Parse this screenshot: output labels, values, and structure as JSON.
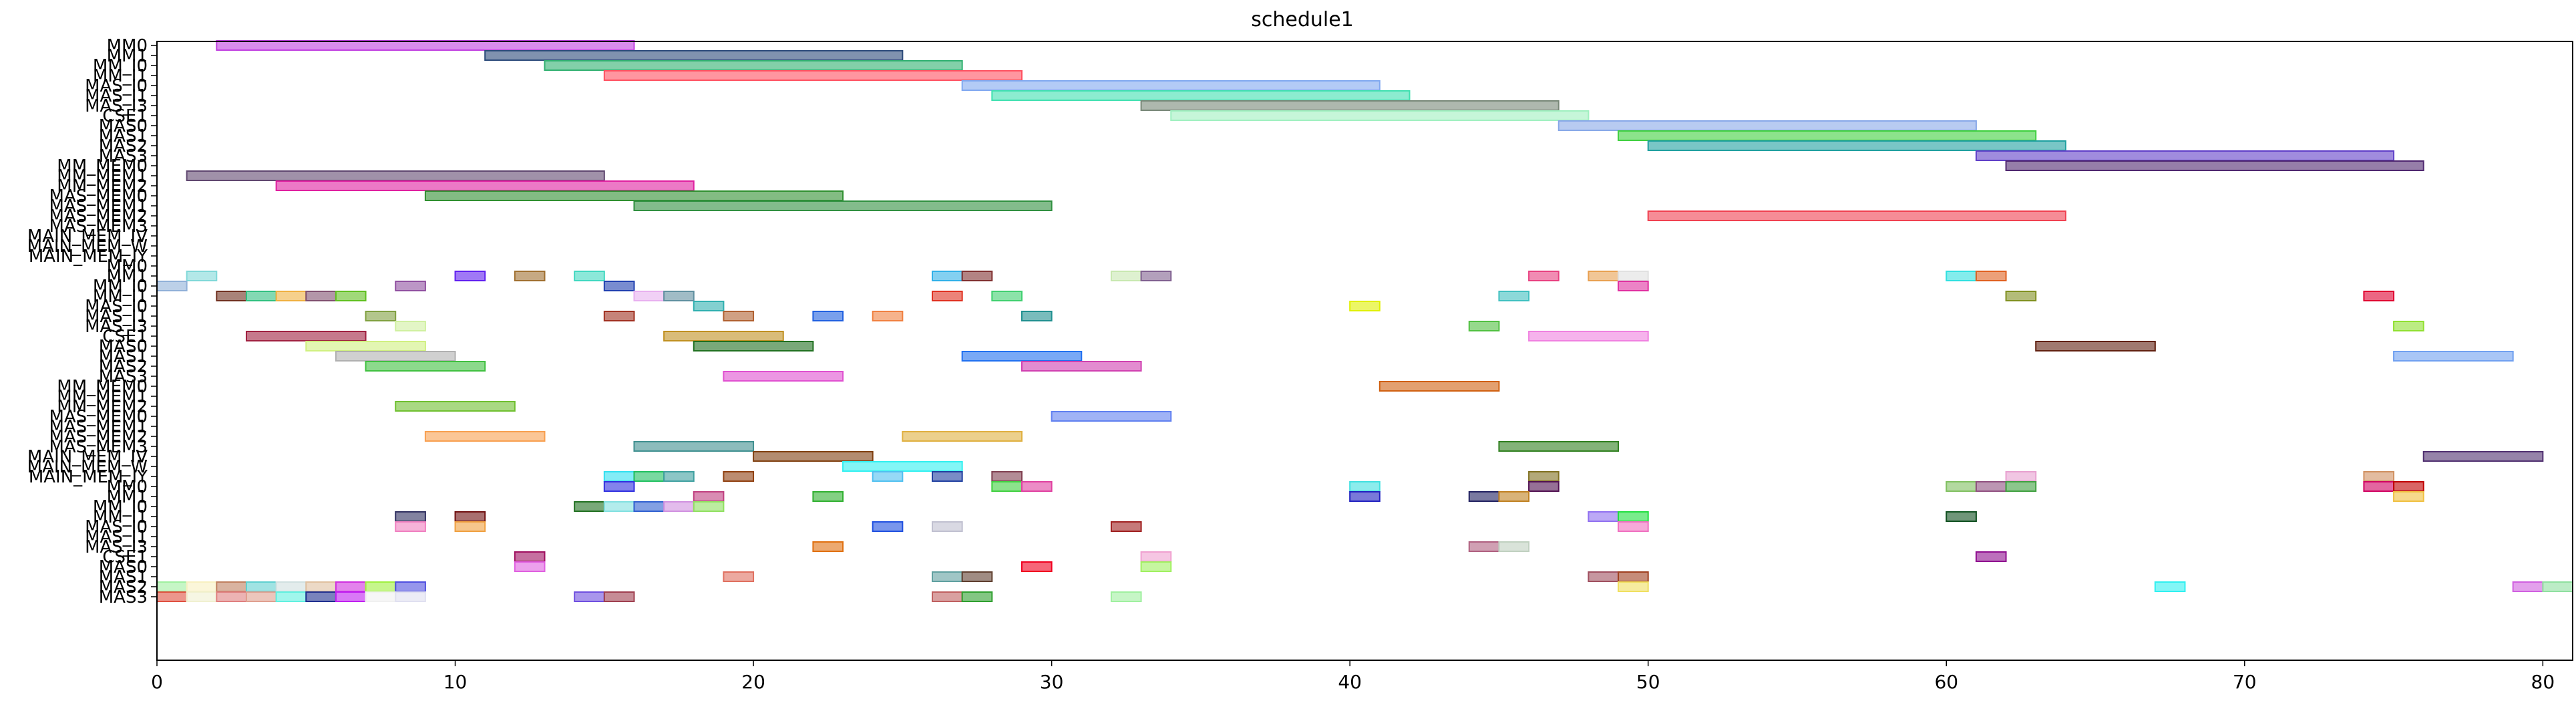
{
  "chart_data": {
    "type": "gantt",
    "title": "schedule1",
    "xlabel": "",
    "ylabel": "",
    "xlim": [
      0,
      81
    ],
    "xticks": [
      0,
      10,
      20,
      30,
      40,
      50,
      60,
      70,
      80
    ],
    "grid": false,
    "legend": "none",
    "ytick_labels_readable": [
      "MM0",
      "MM1",
      "MM_I0",
      "MM_I1",
      "MAS_I0",
      "MAS_I1",
      "MAS_I3",
      "CSE1",
      "MAS0",
      "MAS1",
      "MAS2",
      "MAS3",
      "MM_MEM0",
      "MM_MEM1",
      "MM_MEM2",
      "MAS_MEM0",
      "MAS_MEM1",
      "MAS_MEM2",
      "MAS_MEM3",
      "MAIN_MEM_IV",
      "MAIN_MEM_W",
      "MAIN_MEM_IY"
    ],
    "rows": [
      {
        "bars": [
          [
            2,
            16,
            "#c040e0"
          ]
        ]
      },
      {
        "bars": [
          [
            11,
            25,
            "#2c4a7a"
          ]
        ]
      },
      {
        "bars": [
          [
            13,
            27,
            "#30b070"
          ]
        ]
      },
      {
        "bars": [
          [
            15,
            29,
            "#ff5060"
          ]
        ]
      },
      {
        "bars": [
          [
            27,
            41,
            "#80a8f0"
          ]
        ]
      },
      {
        "bars": [
          [
            28,
            42,
            "#40e0b0"
          ]
        ]
      },
      {
        "bars": [
          [
            33,
            47,
            "#788878"
          ]
        ]
      },
      {
        "bars": [
          [
            34,
            48,
            "#a0f0c0"
          ]
        ]
      },
      {
        "bars": [
          [
            47,
            61,
            "#88a8e8"
          ]
        ]
      },
      {
        "bars": [
          [
            49,
            63,
            "#40d040"
          ]
        ]
      },
      {
        "bars": [
          [
            50,
            64,
            "#20a0a0"
          ]
        ]
      },
      {
        "bars": [
          [
            61,
            75,
            "#6040c8"
          ]
        ]
      },
      {
        "bars": [
          [
            62,
            76,
            "#502870"
          ]
        ]
      },
      {
        "bars": [
          [
            1,
            15,
            "#604870"
          ]
        ]
      },
      {
        "bars": [
          [
            4,
            18,
            "#e020a0"
          ]
        ]
      },
      {
        "bars": [
          [
            9,
            23,
            "#309030"
          ]
        ]
      },
      {
        "bars": [
          [
            16,
            30,
            "#309040"
          ]
        ]
      },
      {
        "bars": [
          [
            50,
            64,
            "#f04050"
          ]
        ]
      },
      {
        "bars": []
      },
      {
        "bars": []
      },
      {
        "bars": []
      },
      {
        "bars": []
      },
      {
        "bars": []
      },
      {
        "bars": [
          [
            1,
            2,
            "#80d8d8"
          ],
          [
            10,
            11,
            "#6020f0"
          ],
          [
            12,
            13,
            "#a07030"
          ],
          [
            14,
            15,
            "#40d8c0"
          ],
          [
            26,
            27,
            "#30b0e8"
          ],
          [
            27,
            28,
            "#803030"
          ],
          [
            32,
            33,
            "#c8e8b0"
          ],
          [
            33,
            34,
            "#806090"
          ],
          [
            46,
            47,
            "#e84080"
          ],
          [
            48,
            49,
            "#e8a050"
          ],
          [
            49,
            50,
            "#e0e0e0"
          ],
          [
            60,
            61,
            "#30e0e0"
          ],
          [
            61,
            62,
            "#e06020"
          ]
        ]
      },
      {
        "bars": [
          [
            0,
            1,
            "#90b0d8"
          ],
          [
            8,
            9,
            "#9050a0"
          ],
          [
            15,
            16,
            "#2040b0"
          ],
          [
            49,
            50,
            "#e030a0"
          ]
        ]
      },
      {
        "bars": [
          [
            2,
            3,
            "#703020"
          ],
          [
            3,
            4,
            "#30c080"
          ],
          [
            4,
            5,
            "#f0b040"
          ],
          [
            5,
            6,
            "#805070"
          ],
          [
            6,
            7,
            "#60c020"
          ],
          [
            16,
            17,
            "#e8b0f0"
          ],
          [
            17,
            18,
            "#6090a0"
          ],
          [
            26,
            27,
            "#e03020"
          ],
          [
            28,
            29,
            "#40d070"
          ],
          [
            45,
            46,
            "#40c0c0"
          ],
          [
            62,
            63,
            "#809020"
          ],
          [
            74,
            75,
            "#e00030"
          ]
        ]
      },
      {
        "bars": [
          [
            18,
            19,
            "#30b0b0"
          ],
          [
            40,
            41,
            "#e0f000"
          ]
        ]
      },
      {
        "bars": [
          [
            7,
            8,
            "#80a040"
          ],
          [
            15,
            16,
            "#a03020"
          ],
          [
            19,
            20,
            "#b06030"
          ],
          [
            22,
            23,
            "#2060e0"
          ],
          [
            24,
            25,
            "#f08040"
          ],
          [
            29,
            30,
            "#209090"
          ]
        ]
      },
      {
        "bars": [
          [
            8,
            9,
            "#d0f0a0"
          ],
          [
            44,
            45,
            "#50c040"
          ],
          [
            75,
            76,
            "#90e030"
          ]
        ]
      },
      {
        "bars": [
          [
            3,
            7,
            "#a02040"
          ],
          [
            17,
            21,
            "#c09020"
          ],
          [
            46,
            50,
            "#f080e0"
          ]
        ]
      },
      {
        "bars": [
          [
            5,
            9,
            "#d0f080"
          ],
          [
            18,
            22,
            "#207020"
          ],
          [
            63,
            67,
            "#602010"
          ]
        ]
      },
      {
        "bars": [
          [
            6,
            10,
            "#b0b0b0"
          ],
          [
            27,
            31,
            "#2070f0"
          ],
          [
            75,
            79,
            "#70a0f0"
          ]
        ]
      },
      {
        "bars": [
          [
            7,
            11,
            "#40c040"
          ],
          [
            29,
            33,
            "#d040b0"
          ]
        ]
      },
      {
        "bars": [
          [
            19,
            23,
            "#e050d0"
          ]
        ]
      },
      {
        "bars": [
          [
            41,
            45,
            "#d06010"
          ]
        ]
      },
      {
        "bars": []
      },
      {
        "bars": [
          [
            8,
            12,
            "#70c030"
          ]
        ]
      },
      {
        "bars": [
          [
            30,
            34,
            "#6080f0"
          ]
        ]
      },
      {
        "bars": []
      },
      {
        "bars": [
          [
            9,
            13,
            "#f8a050"
          ],
          [
            25,
            29,
            "#e0b040"
          ]
        ]
      },
      {
        "bars": [
          [
            16,
            20,
            "#409090"
          ],
          [
            45,
            49,
            "#308020"
          ]
        ]
      },
      {
        "bars": [
          [
            20,
            24,
            "#804010"
          ],
          [
            76,
            80,
            "#503070"
          ]
        ]
      },
      {
        "bars": [
          [
            23,
            27,
            "#30f0f0"
          ]
        ]
      },
      {
        "bars": [
          [
            15,
            16,
            "#30e0f0"
          ],
          [
            16,
            17,
            "#20c060"
          ],
          [
            17,
            18,
            "#40a0a0"
          ],
          [
            19,
            20,
            "#904010"
          ],
          [
            24,
            25,
            "#50c0f0"
          ],
          [
            26,
            27,
            "#2040a0"
          ],
          [
            28,
            29,
            "#804050"
          ],
          [
            46,
            47,
            "#807020"
          ],
          [
            62,
            63,
            "#e8a0d0"
          ],
          [
            74,
            75,
            "#d09060"
          ]
        ]
      },
      {
        "bars": [
          [
            15,
            16,
            "#3030e0"
          ],
          [
            28,
            29,
            "#40d040"
          ],
          [
            29,
            30,
            "#e040a0"
          ],
          [
            40,
            41,
            "#40e0e0"
          ],
          [
            46,
            47,
            "#501050"
          ],
          [
            60,
            61,
            "#80c060"
          ],
          [
            61,
            62,
            "#905080"
          ],
          [
            62,
            63,
            "#40a040"
          ],
          [
            74,
            75,
            "#d00060"
          ],
          [
            75,
            76,
            "#c00000"
          ]
        ]
      },
      {
        "bars": [
          [
            18,
            19,
            "#c04080"
          ],
          [
            22,
            23,
            "#30b030"
          ],
          [
            40,
            41,
            "#2020c0"
          ],
          [
            44,
            45,
            "#202060"
          ],
          [
            45,
            46,
            "#c08020"
          ],
          [
            75,
            76,
            "#f0c040"
          ]
        ]
      },
      {
        "bars": [
          [
            14,
            15,
            "#207020"
          ],
          [
            15,
            16,
            "#80e0e0"
          ],
          [
            16,
            17,
            "#3060d0"
          ],
          [
            17,
            18,
            "#d090e0"
          ],
          [
            18,
            19,
            "#90e060"
          ]
        ]
      },
      {
        "bars": [
          [
            8,
            9,
            "#303060"
          ],
          [
            10,
            11,
            "#701010"
          ],
          [
            48,
            49,
            "#9070f0"
          ],
          [
            49,
            50,
            "#20e040"
          ],
          [
            60,
            61,
            "#105020"
          ]
        ]
      },
      {
        "bars": [
          [
            8,
            9,
            "#f080c0"
          ],
          [
            10,
            11,
            "#f0a040"
          ],
          [
            24,
            25,
            "#2050e0"
          ],
          [
            26,
            27,
            "#c0c0d0"
          ],
          [
            32,
            33,
            "#a02020"
          ],
          [
            49,
            50,
            "#f070c0"
          ]
        ]
      },
      {
        "bars": []
      },
      {
        "bars": [
          [
            22,
            23,
            "#e07010"
          ],
          [
            44,
            45,
            "#b06080"
          ],
          [
            45,
            46,
            "#c0d0c0"
          ]
        ]
      },
      {
        "bars": [
          [
            12,
            13,
            "#a01060"
          ],
          [
            33,
            34,
            "#f0a0d0"
          ],
          [
            61,
            62,
            "#901090"
          ]
        ]
      },
      {
        "bars": [
          [
            12,
            13,
            "#e060e0"
          ],
          [
            29,
            30,
            "#f00020"
          ],
          [
            33,
            34,
            "#a0f060"
          ]
        ]
      },
      {
        "bars": [
          [
            19,
            20,
            "#e07060"
          ],
          [
            26,
            27,
            "#60a0a0"
          ],
          [
            27,
            28,
            "#604030"
          ],
          [
            48,
            49,
            "#a05060"
          ],
          [
            49,
            50,
            "#a04020"
          ]
        ]
      },
      {
        "bars": [
          [
            0,
            1,
            "#a0f0a0"
          ],
          [
            1,
            2,
            "#f8f0c0"
          ],
          [
            2,
            3,
            "#c08060"
          ],
          [
            3,
            4,
            "#60d0d0"
          ],
          [
            4,
            5,
            "#d0e0e0"
          ],
          [
            5,
            6,
            "#e0c0a0"
          ],
          [
            6,
            7,
            "#d030e0"
          ],
          [
            7,
            8,
            "#a0f040"
          ],
          [
            8,
            9,
            "#5050e0"
          ],
          [
            49,
            50,
            "#f0e060"
          ],
          [
            67,
            68,
            "#30f0f0"
          ],
          [
            79,
            80,
            "#d060e0"
          ],
          [
            80,
            81,
            "#90e0a0"
          ]
        ]
      },
      {
        "bars": [
          [
            0,
            1,
            "#e05040"
          ],
          [
            1,
            2,
            "#f0f0d0"
          ],
          [
            2,
            3,
            "#e08080"
          ],
          [
            3,
            4,
            "#e0a090"
          ],
          [
            4,
            5,
            "#60f0e0"
          ],
          [
            5,
            6,
            "#203090"
          ],
          [
            6,
            7,
            "#c020f0"
          ],
          [
            7,
            8,
            "#f0f0f0"
          ],
          [
            8,
            9,
            "#e0e0f0"
          ],
          [
            14,
            15,
            "#7050e0"
          ],
          [
            15,
            16,
            "#a04050"
          ],
          [
            26,
            27,
            "#c06060"
          ],
          [
            27,
            28,
            "#30a030"
          ],
          [
            32,
            33,
            "#a0f0a0"
          ]
        ]
      }
    ]
  }
}
